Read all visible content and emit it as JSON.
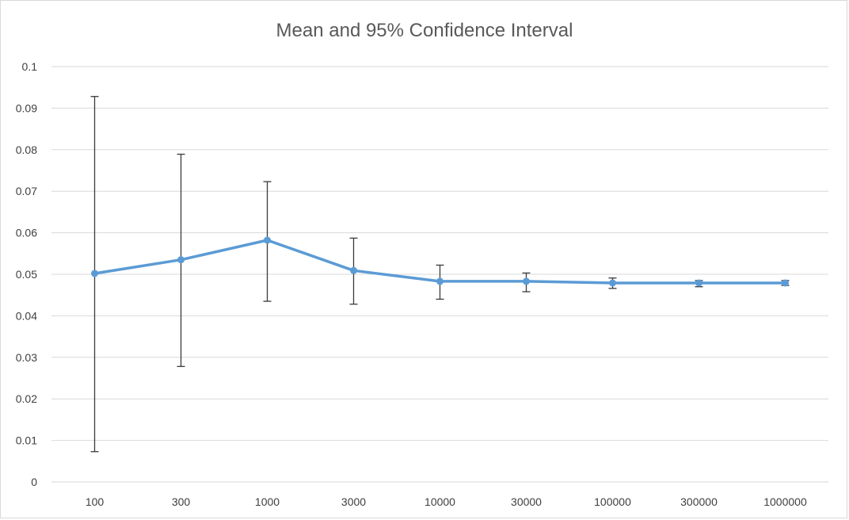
{
  "chart_data": {
    "type": "line",
    "title": "Mean and 95% Confidence Interval",
    "xlabel": "",
    "ylabel": "",
    "categories": [
      "100",
      "300",
      "1000",
      "3000",
      "10000",
      "30000",
      "100000",
      "300000",
      "1000000"
    ],
    "ylim": [
      0,
      0.1
    ],
    "y_ticks": [
      "0",
      "0.01",
      "0.02",
      "0.03",
      "0.04",
      "0.05",
      "0.06",
      "0.07",
      "0.08",
      "0.09",
      "0.1"
    ],
    "grid": true,
    "legend": "none",
    "series": [
      {
        "values": [
          0.0502,
          0.0535,
          0.0582,
          0.0509,
          0.0483,
          0.0483,
          0.0479,
          0.0479,
          0.0479
        ],
        "error_lower": [
          0.0073,
          0.0278,
          0.0435,
          0.0428,
          0.044,
          0.0458,
          0.0466,
          0.047,
          0.0473
        ],
        "error_upper": [
          0.0928,
          0.0789,
          0.0723,
          0.0587,
          0.0522,
          0.0503,
          0.0491,
          0.0485,
          0.0485
        ],
        "color": "#5b9bd5"
      }
    ],
    "error_bar_color": "#3a3a3a"
  }
}
